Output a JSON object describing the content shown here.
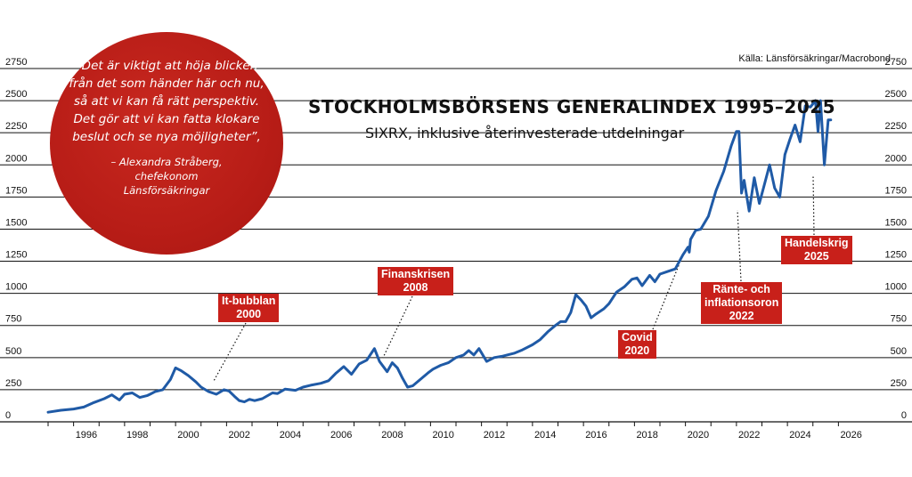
{
  "source": "Källa: Länsförsäkringar/Macrobond",
  "title": "STOCKHOLMSBÖRSENS GENERALINDEX 1995–2025",
  "subtitle": "SIXRX, inklusive återinvesterade utdelningar",
  "quote": {
    "text": "”Det är viktigt att höja blicken från det som händer här och nu, så att vi kan få rätt perspektiv. Det gör att vi kan fatta klokare beslut och se nya möjligheter”,",
    "author": "– Alexandra Stråberg,",
    "role": "chefekonom",
    "company": "Länsförsäkringar",
    "bubble_color": "#b81d17"
  },
  "annotations": [
    {
      "line1": "It-bubblan",
      "line2": "2000"
    },
    {
      "line1": "Finanskrisen",
      "line2": "2008"
    },
    {
      "line1": "Covid",
      "line2": "2020"
    },
    {
      "line1": "Ränte- och",
      "line2": "inflationsoron",
      "line3": "2022"
    },
    {
      "line1": "Handelskrig",
      "line2": "2025"
    }
  ],
  "colors": {
    "line": "#1f5aa6",
    "label_bg": "#c8201a",
    "grid": "#111111"
  },
  "chart_data": {
    "type": "line",
    "title": "STOCKHOLMSBÖRSENS GENERALINDEX 1995–2025",
    "subtitle": "SIXRX, inklusive återinvesterade utdelningar",
    "xlim": [
      1995,
      2027
    ],
    "ylim": [
      0,
      2750
    ],
    "x_ticks": [
      1996,
      1998,
      2000,
      2002,
      2004,
      2006,
      2008,
      2010,
      2012,
      2014,
      2016,
      2018,
      2020,
      2022,
      2024,
      2026
    ],
    "y_ticks": [
      0,
      250,
      500,
      750,
      1000,
      1250,
      1500,
      1750,
      2000,
      2250,
      2500,
      2750
    ],
    "grid": "horizontal",
    "series": [
      {
        "x": [
          1995.0,
          1995.5,
          1996.0,
          1996.4,
          1996.8,
          1997.2,
          1997.5,
          1997.8,
          1998.0,
          1998.3,
          1998.6,
          1998.9,
          1999.0,
          1999.2,
          1999.5,
          1999.8,
          2000.0,
          2000.2,
          2000.5,
          2000.8,
          2001.0,
          2001.3,
          2001.6,
          2001.9,
          2002.1,
          2002.3,
          2002.5,
          2002.7,
          2002.9,
          2003.1,
          2003.4,
          2003.8,
          2004.0,
          2004.3,
          2004.7,
          2005.0,
          2005.3,
          2005.7,
          2006.0,
          2006.3,
          2006.6,
          2006.9,
          2007.2,
          2007.5,
          2007.8,
          2008.0,
          2008.3,
          2008.5,
          2008.7,
          2008.9,
          2009.1,
          2009.3,
          2009.6,
          2009.9,
          2010.1,
          2010.4,
          2010.7,
          2011.0,
          2011.3,
          2011.5,
          2011.7,
          2011.9,
          2012.2,
          2012.5,
          2012.8,
          2013.0,
          2013.3,
          2013.6,
          2014.0,
          2014.3,
          2014.6,
          2014.9,
          2015.1,
          2015.3,
          2015.5,
          2015.7,
          2015.9,
          2016.1,
          2016.3,
          2016.5,
          2016.8,
          2017.0,
          2017.3,
          2017.6,
          2017.9,
          2018.1,
          2018.3,
          2018.6,
          2018.8,
          2019.0,
          2019.3,
          2019.6,
          2019.9,
          2020.1,
          2020.15,
          2020.2,
          2020.4,
          2020.6,
          2020.9,
          2021.2,
          2021.5,
          2021.8,
          2022.0,
          2022.1,
          2022.2,
          2022.3,
          2022.5,
          2022.7,
          2022.9,
          2023.1,
          2023.3,
          2023.5,
          2023.7,
          2023.9,
          2024.1,
          2024.3,
          2024.5,
          2024.7,
          2024.9,
          2025.1,
          2025.2,
          2025.3,
          2025.45,
          2025.6,
          2025.7
        ],
        "values": [
          75,
          90,
          100,
          115,
          150,
          180,
          210,
          170,
          215,
          225,
          190,
          205,
          215,
          235,
          250,
          330,
          420,
          400,
          360,
          310,
          270,
          235,
          215,
          250,
          240,
          200,
          165,
          155,
          175,
          165,
          180,
          225,
          220,
          255,
          245,
          270,
          285,
          300,
          320,
          380,
          430,
          370,
          450,
          480,
          570,
          470,
          390,
          460,
          420,
          340,
          270,
          280,
          330,
          380,
          410,
          440,
          460,
          500,
          520,
          555,
          520,
          570,
          470,
          500,
          510,
          520,
          535,
          560,
          600,
          640,
          700,
          750,
          780,
          780,
          850,
          990,
          950,
          900,
          810,
          840,
          880,
          920,
          1010,
          1050,
          1110,
          1120,
          1060,
          1140,
          1090,
          1150,
          1170,
          1190,
          1300,
          1360,
          1320,
          1420,
          1490,
          1500,
          1600,
          1800,
          1950,
          2150,
          2260,
          2260,
          1780,
          1880,
          1640,
          1900,
          1700,
          1850,
          2000,
          1820,
          1750,
          2080,
          2200,
          2310,
          2180,
          2460,
          2450,
          2500,
          2260,
          2500,
          2000,
          2350,
          2350
        ]
      }
    ]
  }
}
